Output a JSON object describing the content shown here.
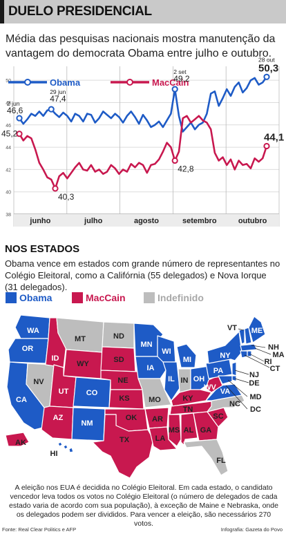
{
  "header": {
    "title": "DUELO PRESIDENCIAL"
  },
  "intro": {
    "text": "Média das pesquisas nacionais mostra manutenção da vantagem do democrata Obama entre julho e outubro."
  },
  "colors": {
    "obama": "#1e5bc6",
    "maccain": "#c8184f",
    "undefined": "#bdbdbd",
    "grid": "#dcdcdc"
  },
  "chart_data": {
    "type": "line",
    "title": "",
    "xlabel": "",
    "ylabel": "",
    "x_tick_labels": [
      "junho",
      "julho",
      "agosto",
      "setembro",
      "outubro"
    ],
    "y_ticks": [
      38,
      40,
      42,
      44,
      46,
      48,
      50
    ],
    "ylim": [
      38,
      51
    ],
    "grid": true,
    "legend": "top",
    "series": [
      {
        "name": "Obama",
        "color": "#1e5bc6",
        "values": [
          46.6,
          46.1,
          46.5,
          47.0,
          46.8,
          47.2,
          46.8,
          47.3,
          47.4,
          47.0,
          46.7,
          47.1,
          46.8,
          46.3,
          47.0,
          46.8,
          46.3,
          47.0,
          46.9,
          46.2,
          46.6,
          47.2,
          46.9,
          46.6,
          47.0,
          46.7,
          46.2,
          46.8,
          47.2,
          46.7,
          46.1,
          46.9,
          46.4,
          45.8,
          46.0,
          46.3,
          45.8,
          46.4,
          47.0,
          49.2,
          46.8,
          45.4,
          45.8,
          46.2,
          45.6,
          46.0,
          46.2,
          47.0,
          48.8,
          49.0,
          47.7,
          48.4,
          49.2,
          48.6,
          49.4,
          49.8,
          48.9,
          49.3,
          50.0,
          50.2,
          49.6,
          49.8,
          50.3
        ],
        "annotations": [
          {
            "label": "2 jun",
            "value": "46,6"
          },
          {
            "label": "29 jun",
            "value": "47,4"
          },
          {
            "label": "2 set",
            "value": "49,2"
          },
          {
            "label": "28 out",
            "value": "50,3"
          }
        ]
      },
      {
        "name": "MacCain",
        "color": "#c8184f",
        "values": [
          45.2,
          44.6,
          45.0,
          44.8,
          43.8,
          42.6,
          42.0,
          41.3,
          41.1,
          40.3,
          41.4,
          41.7,
          41.2,
          41.7,
          42.2,
          42.6,
          42.0,
          41.9,
          42.4,
          41.8,
          42.0,
          41.6,
          41.8,
          42.4,
          42.1,
          41.6,
          42.0,
          41.8,
          42.5,
          42.2,
          42.6,
          42.4,
          41.7,
          42.4,
          42.5,
          42.9,
          43.6,
          44.4,
          44.0,
          42.8,
          43.6,
          46.6,
          46.8,
          46.2,
          46.5,
          46.8,
          46.4,
          46.2,
          45.6,
          43.5,
          42.8,
          43.1,
          42.4,
          42.9,
          42.0,
          42.8,
          42.4,
          42.5,
          42.1,
          43.0,
          42.7,
          43.0,
          44.1
        ],
        "annotations": [
          {
            "value": "45,2"
          },
          {
            "value": "40,3"
          },
          {
            "value": "42,8"
          },
          {
            "value": "44,1"
          }
        ]
      }
    ]
  },
  "states_section": {
    "title": "NOS ESTADOS",
    "text": "Obama vence em estados com grande número de representantes no Colégio Eleitoral, como a Califórnia (55 delegados) e Nova Iorque (31 delegados).",
    "legend": [
      "Obama",
      "MacCain",
      "Indefinido"
    ]
  },
  "map_labels": {
    "WA": "WA",
    "OR": "OR",
    "CA": "CA",
    "NV": "NV",
    "ID": "ID",
    "MT": "MT",
    "WY": "WY",
    "UT": "UT",
    "AZ": "AZ",
    "CO": "CO",
    "NM": "NM",
    "ND": "ND",
    "SD": "SD",
    "NE": "NE",
    "KS": "KS",
    "OK": "OK",
    "TX": "TX",
    "MN": "MN",
    "IA": "IA",
    "MO": "MO",
    "AR": "AR",
    "LA": "LA",
    "WI": "WI",
    "IL": "IL",
    "MI": "MI",
    "IN": "IN",
    "OH": "OH",
    "KY": "KY",
    "TN": "TN",
    "MS": "MS",
    "AL": "AL",
    "GA": "GA",
    "FL": "FL",
    "SC": "SC",
    "NC": "NC",
    "VA": "VA",
    "WV": "WV",
    "PA": "PA",
    "NY": "NY",
    "VT": "VT",
    "ME": "ME",
    "NH": "NH",
    "MA": "MA",
    "RI": "RI",
    "CT": "CT",
    "NJ": "NJ",
    "DE": "DE",
    "MD": "MD",
    "DC": "DC",
    "AK": "AK",
    "HI": "HI"
  },
  "footer": {
    "note": "A eleição nos EUA é decidida no Colégio Eleitoral. Em cada estado, o candidato vencedor leva todos os votos no Colégio Eleitoral (o número de delegados de cada estado varia de acordo com sua população), à exceção de Maine e Nebraska, onde os delegados podem ser divididos. Para vencer a eleição, são necessários 270 votos.",
    "source": "Fonte: Real Clear Politics e AFP",
    "credit": "Infografia: Gazeta do Povo"
  }
}
